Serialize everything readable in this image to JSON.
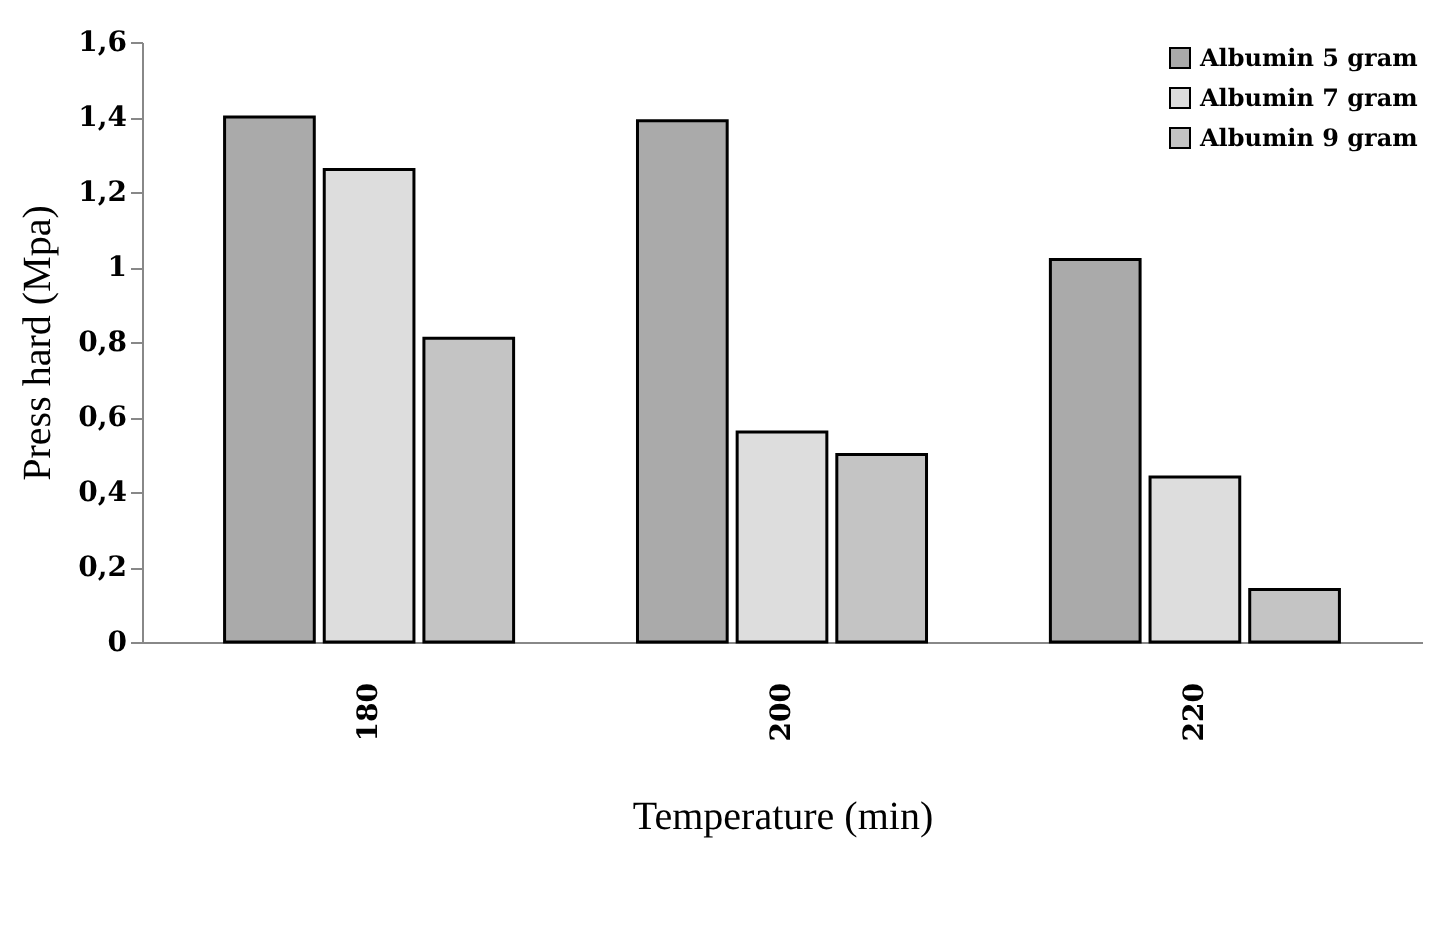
{
  "chart_data": {
    "type": "bar",
    "xlabel": "Temperature (min)",
    "ylabel": "Press hard (Mpa)",
    "categories": [
      "180",
      "200",
      "220"
    ],
    "series": [
      {
        "name": "Albumin 5 gram",
        "color": "#aaaaaa",
        "values": [
          1.4,
          1.39,
          1.02
        ]
      },
      {
        "name": "Albumin 7 gram",
        "color": "#dddddd",
        "values": [
          1.26,
          0.56,
          0.44
        ]
      },
      {
        "name": "Albumin 9 gram",
        "color": "#c4c4c4",
        "values": [
          0.81,
          0.5,
          0.14
        ]
      }
    ],
    "ylim": [
      0,
      1.6
    ],
    "yticks": [
      {
        "value": 0,
        "label": "0"
      },
      {
        "value": 0.2,
        "label": "0,2"
      },
      {
        "value": 0.4,
        "label": "0,4"
      },
      {
        "value": 0.6,
        "label": "0,6"
      },
      {
        "value": 0.8,
        "label": "0,8"
      },
      {
        "value": 1,
        "label": "1"
      },
      {
        "value": 1.2,
        "label": "1,2"
      },
      {
        "value": 1.4,
        "label": "1,4"
      },
      {
        "value": 1.6,
        "label": "1,6"
      }
    ],
    "grid": false,
    "legend": "top right"
  }
}
